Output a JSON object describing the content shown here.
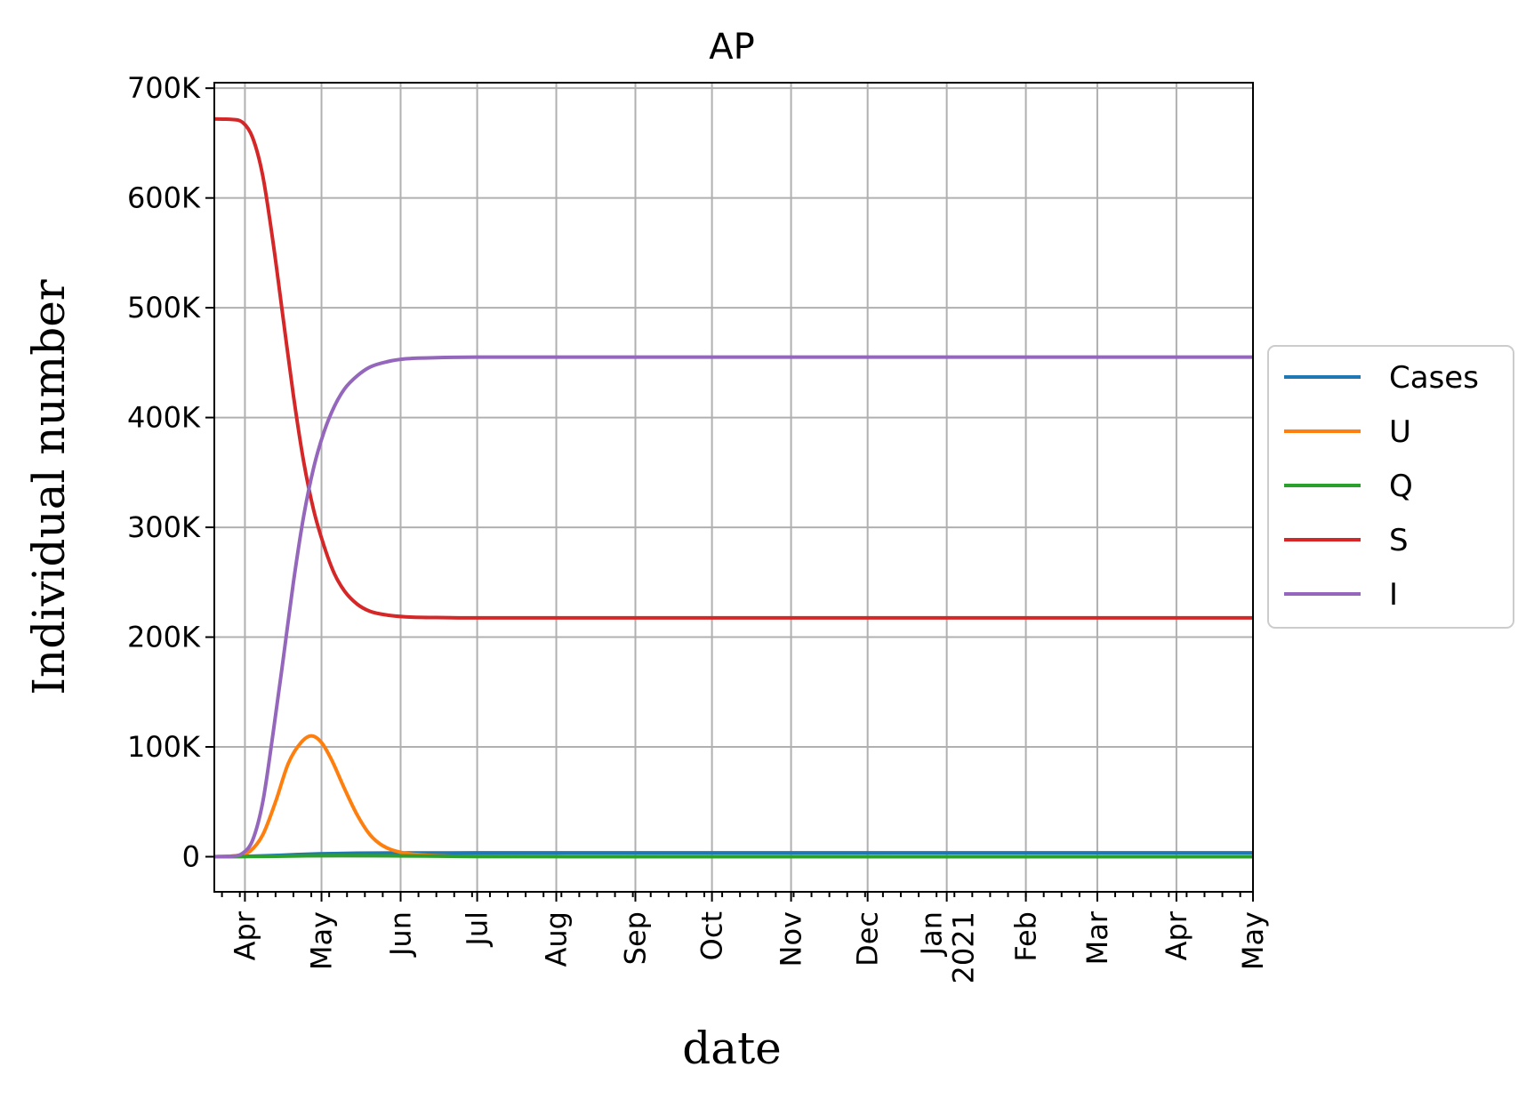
{
  "chart_data": {
    "type": "line",
    "title": "AP",
    "xlabel": "date",
    "ylabel": "Individual number",
    "grid": true,
    "legend_position": "right-center",
    "xlim": [
      "2020-03-20",
      "2021-05-01"
    ],
    "ylim": [
      -32000,
      705000
    ],
    "x_ticks": [
      {
        "date": "2020-04-01",
        "label": "Apr"
      },
      {
        "date": "2020-05-01",
        "label": "May"
      },
      {
        "date": "2020-06-01",
        "label": "Jun"
      },
      {
        "date": "2020-07-01",
        "label": "Jul"
      },
      {
        "date": "2020-08-01",
        "label": "Aug"
      },
      {
        "date": "2020-09-01",
        "label": "Sep"
      },
      {
        "date": "2020-10-01",
        "label": "Oct"
      },
      {
        "date": "2020-11-01",
        "label": "Nov"
      },
      {
        "date": "2020-12-01",
        "label": "Dec"
      },
      {
        "date": "2021-01-01",
        "label": "Jan",
        "label2": "2021"
      },
      {
        "date": "2021-02-01",
        "label": "Feb"
      },
      {
        "date": "2021-03-01",
        "label": "Mar"
      },
      {
        "date": "2021-04-01",
        "label": "Apr"
      },
      {
        "date": "2021-05-01",
        "label": "May"
      }
    ],
    "y_ticks": [
      {
        "value": 0,
        "label": "0"
      },
      {
        "value": 100000,
        "label": "100K"
      },
      {
        "value": 200000,
        "label": "200K"
      },
      {
        "value": 300000,
        "label": "300K"
      },
      {
        "value": 400000,
        "label": "400K"
      },
      {
        "value": 500000,
        "label": "500K"
      },
      {
        "value": 600000,
        "label": "600K"
      },
      {
        "value": 700000,
        "label": "700K"
      }
    ],
    "series": [
      {
        "name": "Cases",
        "color": "#1f77b4",
        "points": [
          [
            "2020-03-20",
            0
          ],
          [
            "2020-04-01",
            300
          ],
          [
            "2020-04-10",
            900
          ],
          [
            "2020-04-20",
            1800
          ],
          [
            "2020-04-30",
            2600
          ],
          [
            "2020-05-15",
            3200
          ],
          [
            "2020-06-01",
            3400
          ],
          [
            "2020-07-01",
            3500
          ],
          [
            "2020-10-01",
            3500
          ],
          [
            "2021-01-01",
            3500
          ],
          [
            "2021-05-01",
            3500
          ]
        ]
      },
      {
        "name": "U",
        "color": "#ff7f0e",
        "points": [
          [
            "2020-03-20",
            0
          ],
          [
            "2020-03-25",
            300
          ],
          [
            "2020-03-30",
            1500
          ],
          [
            "2020-04-03",
            5000
          ],
          [
            "2020-04-08",
            20000
          ],
          [
            "2020-04-13",
            50000
          ],
          [
            "2020-04-18",
            85000
          ],
          [
            "2020-04-23",
            104000
          ],
          [
            "2020-04-27",
            110000
          ],
          [
            "2020-05-01",
            104000
          ],
          [
            "2020-05-05",
            88000
          ],
          [
            "2020-05-10",
            62000
          ],
          [
            "2020-05-15",
            38000
          ],
          [
            "2020-05-20",
            20000
          ],
          [
            "2020-05-25",
            10000
          ],
          [
            "2020-06-01",
            4000
          ],
          [
            "2020-06-10",
            1500
          ],
          [
            "2020-06-20",
            500
          ],
          [
            "2020-07-01",
            100
          ],
          [
            "2020-10-01",
            0
          ],
          [
            "2021-05-01",
            0
          ]
        ]
      },
      {
        "name": "Q",
        "color": "#2ca02c",
        "points": [
          [
            "2020-03-20",
            0
          ],
          [
            "2020-04-10",
            300
          ],
          [
            "2020-04-25",
            800
          ],
          [
            "2020-05-10",
            1000
          ],
          [
            "2020-06-01",
            700
          ],
          [
            "2020-07-01",
            300
          ],
          [
            "2020-09-01",
            100
          ],
          [
            "2021-05-01",
            0
          ]
        ]
      },
      {
        "name": "S",
        "color": "#d62728",
        "points": [
          [
            "2020-03-20",
            672000
          ],
          [
            "2020-03-27",
            671500
          ],
          [
            "2020-03-31",
            669000
          ],
          [
            "2020-04-04",
            655000
          ],
          [
            "2020-04-08",
            620000
          ],
          [
            "2020-04-12",
            560000
          ],
          [
            "2020-04-16",
            490000
          ],
          [
            "2020-04-20",
            420000
          ],
          [
            "2020-04-24",
            360000
          ],
          [
            "2020-04-28",
            315000
          ],
          [
            "2020-05-02",
            283000
          ],
          [
            "2020-05-06",
            258000
          ],
          [
            "2020-05-10",
            242000
          ],
          [
            "2020-05-15",
            230000
          ],
          [
            "2020-05-20",
            223500
          ],
          [
            "2020-05-27",
            220000
          ],
          [
            "2020-06-03",
            218500
          ],
          [
            "2020-06-15",
            217800
          ],
          [
            "2020-07-01",
            217500
          ],
          [
            "2020-10-01",
            217500
          ],
          [
            "2021-05-01",
            217500
          ]
        ]
      },
      {
        "name": "I",
        "color": "#9467bd",
        "points": [
          [
            "2020-03-20",
            0
          ],
          [
            "2020-03-27",
            500
          ],
          [
            "2020-03-31",
            3000
          ],
          [
            "2020-04-04",
            15000
          ],
          [
            "2020-04-08",
            50000
          ],
          [
            "2020-04-12",
            112000
          ],
          [
            "2020-04-16",
            180000
          ],
          [
            "2020-04-20",
            250000
          ],
          [
            "2020-04-24",
            310000
          ],
          [
            "2020-04-28",
            355000
          ],
          [
            "2020-05-02",
            387000
          ],
          [
            "2020-05-06",
            410000
          ],
          [
            "2020-05-10",
            426000
          ],
          [
            "2020-05-15",
            438000
          ],
          [
            "2020-05-20",
            446000
          ],
          [
            "2020-05-27",
            451000
          ],
          [
            "2020-06-03",
            453500
          ],
          [
            "2020-06-15",
            454500
          ],
          [
            "2020-07-01",
            455000
          ],
          [
            "2020-10-01",
            455000
          ],
          [
            "2021-05-01",
            455000
          ]
        ]
      }
    ]
  }
}
